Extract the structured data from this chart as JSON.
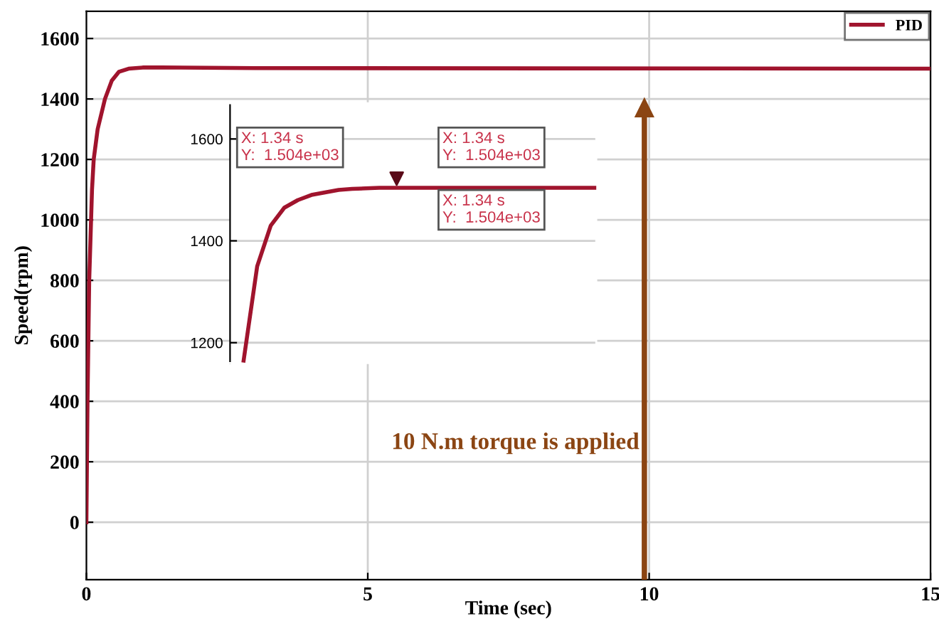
{
  "chart_data": [
    {
      "type": "line",
      "xlabel": "Time (sec)",
      "ylabel": "Speed(rpm)",
      "xlim": [
        0,
        15
      ],
      "ylim": [
        -190,
        1690
      ],
      "xticks": [
        0,
        5,
        10,
        15
      ],
      "yticks": [
        0,
        200,
        400,
        600,
        800,
        1000,
        1200,
        1400,
        1600
      ],
      "grid": true,
      "legend": "top right",
      "marker": "none",
      "line_style": "solid",
      "series": [
        {
          "name": "PID",
          "color": "#a0142d",
          "x": [
            0,
            0.02,
            0.05,
            0.1,
            0.13,
            0.2,
            0.33,
            0.45,
            0.58,
            0.75,
            1,
            1.34,
            3,
            15
          ],
          "values": [
            0,
            400,
            800,
            1100,
            1200,
            1300,
            1400,
            1460,
            1490,
            1500,
            1504,
            1504,
            1502,
            1500
          ]
        }
      ],
      "annotations": [
        "10 N.m torque is applied"
      ]
    },
    {
      "type": "line",
      "categories": [
        null,
        null,
        null,
        null,
        null,
        null,
        null,
        null,
        null,
        null,
        null,
        null,
        null,
        null,
        null,
        null,
        null,
        null,
        null,
        null,
        null,
        null,
        null,
        null,
        null,
        null,
        null
      ],
      "ylim": [
        1160,
        1670
      ],
      "yticks": [
        1200,
        1400,
        1600
      ],
      "grid": "y",
      "marker": "none",
      "line_style": "solid",
      "series": [
        {
          "color": "#a0142d",
          "values": [
            1165,
            1350,
            1430,
            1465,
            1480,
            1490,
            1495,
            1500,
            1502,
            1503,
            1504,
            1504,
            1504,
            1504,
            1504,
            1504,
            1504,
            1504,
            1504,
            1504,
            1504,
            1504,
            1504,
            1504,
            1504,
            1504,
            1504
          ]
        }
      ],
      "annotations": [
        "X: 1.34 s\nY:  1.504e+03",
        "X: 1.34 s\nY:  1.504e+03",
        "X: 1.34 s\nY:  1.504e+03"
      ]
    }
  ]
}
